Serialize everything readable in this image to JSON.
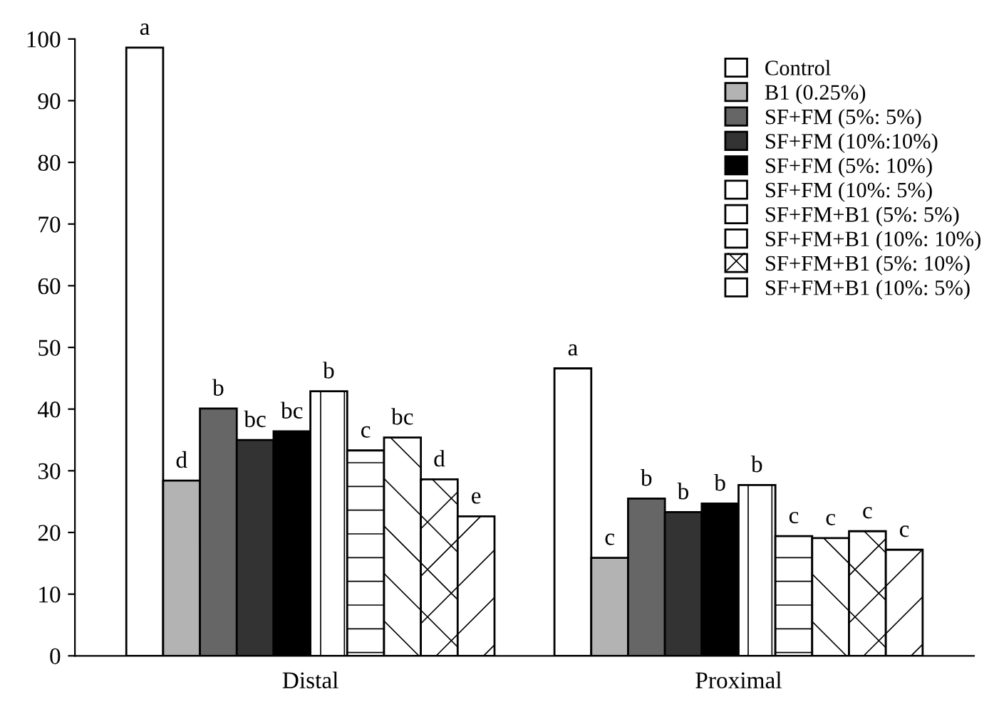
{
  "chart_data": {
    "type": "bar",
    "categories": [
      "Distal",
      "Proximal"
    ],
    "series": [
      {
        "name": "Control",
        "color": "#ffffff",
        "values": [
          98.6,
          46.6
        ],
        "value_labels": [
          "a",
          "a"
        ]
      },
      {
        "name": "B1 (0.25%)",
        "color": "#b3b3b3",
        "values": [
          28.4,
          15.9
        ],
        "value_labels": [
          "d",
          "c"
        ]
      },
      {
        "name": "SF+FM (5%: 5%)",
        "color": "#666666",
        "values": [
          40.1,
          25.5
        ],
        "value_labels": [
          "b",
          "b"
        ]
      },
      {
        "name": "SF+FM (10%:10%)",
        "color": "#333333",
        "values": [
          35.0,
          23.3
        ],
        "value_labels": [
          "bc",
          "b"
        ]
      },
      {
        "name": "SF+FM (5%: 10%)",
        "color": "#000000",
        "values": [
          36.4,
          24.7
        ],
        "value_labels": [
          "bc",
          "b"
        ]
      },
      {
        "name": "SF+FM (10%: 5%)",
        "color": "#ffffff",
        "values": [
          42.9,
          27.7
        ],
        "value_labels": [
          "b",
          "b"
        ]
      },
      {
        "name": "SF+FM+B1 (5%: 5%)",
        "color": "#ffffff",
        "values": [
          33.3,
          19.4
        ],
        "value_labels": [
          "c",
          "c"
        ]
      },
      {
        "name": "SF+FM+B1 (10%: 10%)",
        "color": "#ffffff",
        "values": [
          35.4,
          19.1
        ],
        "value_labels": [
          "bc",
          "c"
        ]
      },
      {
        "name": "SF+FM+B1 (5%: 10%)",
        "color": "#ffffff",
        "values": [
          28.6,
          20.2
        ],
        "value_labels": [
          "d",
          "c"
        ]
      },
      {
        "name": "SF+FM+B1 (10%: 5%)",
        "color": "#ffffff",
        "values": [
          22.6,
          17.2
        ],
        "value_labels": [
          "e",
          "c"
        ]
      }
    ],
    "ylim": [
      0,
      100
    ],
    "yticks": [
      0,
      10,
      20,
      30,
      40,
      50,
      60,
      70,
      80,
      90,
      100
    ],
    "grid": false,
    "legend": "top right"
  }
}
